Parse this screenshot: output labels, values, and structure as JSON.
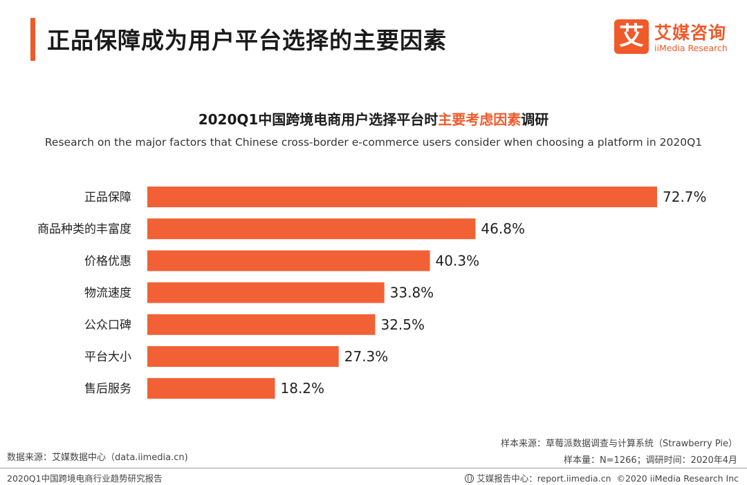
{
  "header": {
    "title": "正品保障成为用户平台选择的主要因素",
    "logo_mark": "艾",
    "logo_cn": "艾媒咨询",
    "logo_en": "iiMedia Research"
  },
  "chart_data": {
    "type": "bar",
    "orientation": "horizontal",
    "title_prefix": "2020Q1中国跨境电商用户选择平台时",
    "title_highlight": "主要考虑因素",
    "title_suffix": "调研",
    "subtitle": "Research on the major factors that Chinese cross-border e-commerce users consider when choosing a platform in 2020Q1",
    "categories": [
      "正品保障",
      "商品种类的丰富度",
      "价格优惠",
      "物流速度",
      "公众口碑",
      "平台大小",
      "售后服务"
    ],
    "values": [
      72.7,
      46.8,
      40.3,
      33.8,
      32.5,
      27.3,
      18.2
    ],
    "value_labels": [
      "72.7%",
      "46.8%",
      "40.3%",
      "33.8%",
      "32.5%",
      "27.3%",
      "18.2%"
    ],
    "unit": "%",
    "xlim": [
      0,
      72.7
    ],
    "grid": false,
    "legend": "none"
  },
  "footer": {
    "source": "数据来源：艾媒数据中心（data.iimedia.cn)",
    "sample_source": "样本来源：草莓派数据调查与计算系统（Strawberry Pie）",
    "sample_size": "样本量：N=1266；调研时间：2020年4月",
    "report_name": "2020Q1中国跨境电商行业趋势研究报告",
    "report_center": "艾媒报告中心：report.iimedia.cn",
    "copyright": "©2020  iiMedia Research  Inc"
  },
  "colors": {
    "accent": "#f05a2a",
    "bar": "#f26135",
    "text": "#222222"
  },
  "icons": {
    "logo": "iimedia-logo",
    "globe": "globe-icon"
  }
}
